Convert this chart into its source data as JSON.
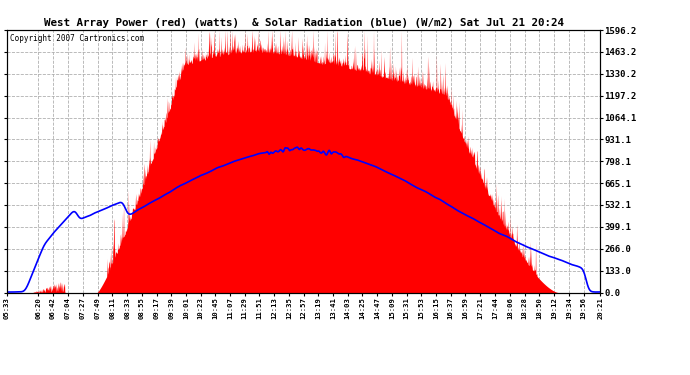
{
  "title": "West Array Power (red) (watts)  & Solar Radiation (blue) (W/m2) Sat Jul 21 20:24",
  "copyright": "Copyright 2007 Cartronics.com",
  "background_color": "#ffffff",
  "plot_bg_color": "#ffffff",
  "grid_color": "#b0b0b0",
  "y_right_ticks": [
    0.0,
    133.0,
    266.0,
    399.1,
    532.1,
    665.1,
    798.1,
    931.1,
    1064.1,
    1197.2,
    1330.2,
    1463.2,
    1596.2
  ],
  "x_tick_labels": [
    "05:33",
    "06:20",
    "06:42",
    "07:04",
    "07:27",
    "07:49",
    "08:11",
    "08:33",
    "08:55",
    "09:17",
    "09:39",
    "10:01",
    "10:23",
    "10:45",
    "11:07",
    "11:29",
    "11:51",
    "12:13",
    "12:35",
    "12:57",
    "13:19",
    "13:41",
    "14:03",
    "14:25",
    "14:47",
    "15:09",
    "15:31",
    "15:53",
    "16:15",
    "16:37",
    "16:59",
    "17:21",
    "17:44",
    "18:06",
    "18:28",
    "18:50",
    "19:12",
    "19:34",
    "19:56",
    "20:21"
  ],
  "ylim_max": 1596.2,
  "ylim_min": 0.0
}
